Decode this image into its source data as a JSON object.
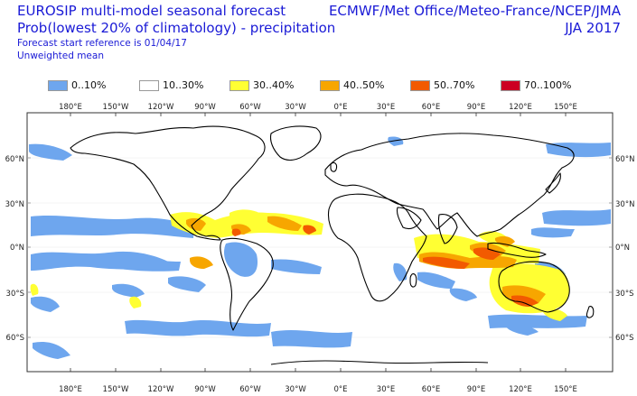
{
  "header": {
    "title_line1": "EUROSIP multi-model seasonal forecast",
    "title_line2": "Prob(lowest 20% of climatology) - precipitation",
    "forecast_ref": "Forecast start reference is 01/04/17",
    "weighting": "Unweighted mean",
    "centres": "ECMWF/Met Office/Meteo-France/NCEP/JMA",
    "season": "JJA 2017"
  },
  "legend": [
    {
      "label": "0..10%",
      "color": "#6ea6ee"
    },
    {
      "label": "10..30%",
      "color": "#ffffff"
    },
    {
      "label": "30..40%",
      "color": "#ffff33"
    },
    {
      "label": "40..50%",
      "color": "#f7a600"
    },
    {
      "label": "50..70%",
      "color": "#f25a00"
    },
    {
      "label": "70..100%",
      "color": "#cc0022"
    }
  ],
  "map": {
    "projection": "equirectangular",
    "lon_ticks": [
      "180°E",
      "150°W",
      "120°W",
      "90°W",
      "60°W",
      "30°W",
      "0°E",
      "30°E",
      "60°E",
      "90°E",
      "120°E",
      "150°E"
    ],
    "lat_ticks": [
      "60°N",
      "30°N",
      "0°N",
      "30°S",
      "60°S"
    ]
  }
}
